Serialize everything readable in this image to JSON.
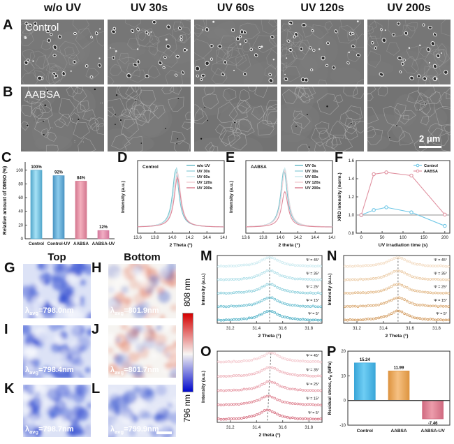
{
  "sem": {
    "headers": [
      "w/o UV",
      "UV 30s",
      "UV 60s",
      "UV 120s",
      "UV 200s"
    ],
    "row_a": {
      "letter": "A",
      "label": "Control"
    },
    "row_b": {
      "letter": "B",
      "label": "AABSA",
      "scale_bar": "2 μm"
    }
  },
  "maps": {
    "top_header": "Top",
    "bottom_header": "Bottom",
    "colorbar": {
      "top_label": "808 nm",
      "bottom_label": "796 nm",
      "top_color": "#d40000",
      "mid_color": "#f7f5f3",
      "bottom_color": "#0008cc"
    },
    "lambda_prefix": "λ",
    "lambda_sub": "avg",
    "panels": [
      {
        "letter": "G",
        "value_text": "=798.0nm",
        "kind": "blue-strong"
      },
      {
        "letter": "H",
        "value_text": "=801.9nm",
        "kind": "mixed"
      },
      {
        "letter": "I",
        "value_text": "=798.4nm",
        "kind": "blue-strong"
      },
      {
        "letter": "J",
        "value_text": "=801.7nm",
        "kind": "mixed"
      },
      {
        "letter": "K",
        "value_text": "=798.7nm",
        "kind": "blue-strong"
      },
      {
        "letter": "L",
        "value_text": "=799.9nm",
        "kind": "blue-mild"
      }
    ]
  },
  "chart_data": [
    {
      "id": "C",
      "letter": "C",
      "type": "bar",
      "ylabel": "Relative amount of DMSO (%)",
      "ylim": [
        0,
        112
      ],
      "yticks": [
        0,
        20,
        40,
        60,
        80,
        100
      ],
      "categories": [
        "Control",
        "Control-UV",
        "AABSA",
        "AABSA-UV"
      ],
      "values": [
        100,
        92,
        84,
        12
      ],
      "bar_labels": [
        "100%",
        "92%",
        "84%",
        "12%"
      ],
      "bar_fill": [
        "#a6e2f6",
        "#8ccbec",
        "#f4b0be",
        "#f2aec4"
      ],
      "bar_edge": [
        "#55a8cc",
        "#4c96c4",
        "#d47890",
        "#d4789c"
      ]
    },
    {
      "id": "D",
      "letter": "D",
      "type": "peaks",
      "inside_label": "Control",
      "xlabel": "2 Theta (°)",
      "ylabel": "Intensity (a.u.)",
      "xlim": [
        13.6,
        14.6
      ],
      "xticks": [
        "13.6",
        "13.8",
        "14.0",
        "14.2",
        "14.4",
        "14.6"
      ],
      "peak_center": 14.05,
      "series": [
        {
          "name": "w/o UV",
          "color": "#74c0cc",
          "peak": 1.0,
          "center": 14.04
        },
        {
          "name": "UV 30s",
          "color": "#a5d9e1",
          "peak": 1.03,
          "center": 14.05
        },
        {
          "name": "UV 60s",
          "color": "#cfecf0",
          "peak": 1.0,
          "center": 14.05
        },
        {
          "name": "UV 120s",
          "color": "#f3d3d9",
          "peak": 0.96,
          "center": 14.06
        },
        {
          "name": "UV 200s",
          "color": "#de8a9b",
          "peak": 0.87,
          "center": 14.06
        }
      ]
    },
    {
      "id": "E",
      "letter": "E",
      "type": "peaks",
      "inside_label": "AABSA",
      "xlabel": "2 theta (°)",
      "ylabel": "Intensity (a.u.)",
      "xlim": [
        13.6,
        14.6
      ],
      "xticks": [
        "13.6",
        "13.8",
        "14.0",
        "14.2",
        "14.4",
        "14.6"
      ],
      "peak_center": 14.05,
      "series": [
        {
          "name": "UV 0s",
          "color": "#74c0cc",
          "peak": 1.0,
          "center": 14.04
        },
        {
          "name": "UV 30s",
          "color": "#a5d9e1",
          "peak": 1.02,
          "center": 14.05
        },
        {
          "name": "UV 60s",
          "color": "#cfecf0",
          "peak": 1.03,
          "center": 14.05
        },
        {
          "name": "UV 120s",
          "color": "#f3d3d9",
          "peak": 0.99,
          "center": 14.05
        },
        {
          "name": "UV 200s",
          "color": "#de8a9b",
          "peak": 0.62,
          "center": 14.05
        }
      ]
    },
    {
      "id": "F",
      "letter": "F",
      "type": "line",
      "xlabel": "UV irradiation time (s)",
      "ylabel": "XRD intensity (norm.)",
      "xlim": [
        -12,
        212
      ],
      "xticks": [
        0,
        50,
        100,
        150,
        200
      ],
      "ylim": [
        0.8,
        1.6
      ],
      "yticks": [
        "0.8",
        "1.0",
        "1.2",
        "1.4",
        "1.6"
      ],
      "baseline": 1.0,
      "series": [
        {
          "name": "Control",
          "color": "#6cc6e6",
          "x": [
            0,
            30,
            60,
            120,
            200
          ],
          "y": [
            1.0,
            1.055,
            1.085,
            1.03,
            0.88
          ]
        },
        {
          "name": "AABSA",
          "color": "#e091a0",
          "x": [
            0,
            30,
            60,
            120,
            200
          ],
          "y": [
            1.0,
            1.45,
            1.47,
            1.435,
            1.005
          ]
        }
      ]
    },
    {
      "id": "M",
      "letter": "M",
      "type": "stacked",
      "xlabel": "2 Theta (°)",
      "ylabel": "Intensity (a.u.)",
      "xlim": [
        31.1,
        31.9
      ],
      "xticks": [
        "31.2",
        "31.4",
        "31.6",
        "31.8"
      ],
      "psi_labels": [
        "Ψ = 45°",
        "Ψ = 35°",
        "Ψ = 25°",
        "Ψ = 15°",
        "Ψ = 5°"
      ],
      "colors": [
        "#cdebf1",
        "#b2e0e9",
        "#93d2de",
        "#72c2d3",
        "#52b2c7"
      ],
      "centers": [
        31.5,
        31.5,
        31.5,
        31.5,
        31.5
      ],
      "dash_x": [
        31.5,
        31.5
      ]
    },
    {
      "id": "N",
      "letter": "N",
      "type": "stacked",
      "xlabel": "2 Theta (°)",
      "ylabel": "Intensity (a.u.)",
      "xlim": [
        31.1,
        31.9
      ],
      "xticks": [
        "31.2",
        "31.4",
        "31.6",
        "31.8"
      ],
      "psi_labels": [
        "Ψ = 45°",
        "Ψ = 35°",
        "Ψ = 25°",
        "Ψ = 15°",
        "Ψ = 5°"
      ],
      "colors": [
        "#f3dcc3",
        "#eccda9",
        "#e4bd8f",
        "#dcad78",
        "#d39c60"
      ],
      "centers": [
        31.51,
        31.51,
        31.51,
        31.51,
        31.51
      ],
      "dash_x": [
        31.51,
        31.51
      ]
    },
    {
      "id": "O",
      "letter": "O",
      "type": "stacked",
      "xlabel": "2 theta (°)",
      "ylabel": "Intensity (a.u.)",
      "xlim": [
        31.1,
        31.9
      ],
      "xticks": [
        "31.2",
        "31.4",
        "31.6",
        "31.8"
      ],
      "psi_labels": [
        "Ψ = 45°",
        "Ψ = 35°",
        "Ψ = 25°",
        "Ψ = 15°",
        "Ψ = 5°"
      ],
      "colors": [
        "#f5cdd2",
        "#efb7bf",
        "#e8a0ab",
        "#e08a97",
        "#d77283"
      ],
      "centers": [
        31.51,
        31.505,
        31.5,
        31.49,
        31.485
      ],
      "dash_x": [
        31.51,
        31.483
      ]
    },
    {
      "id": "P",
      "letter": "P",
      "type": "bar",
      "ylabel_parts": {
        "pre": "Residual stress, σ",
        "sub": "R",
        "post": " (MPa)"
      },
      "ylim": [
        -10,
        20
      ],
      "yticks": [
        -10,
        0,
        10,
        20
      ],
      "categories": [
        "Control",
        "AABSA",
        "AABSA-UV"
      ],
      "values": [
        15.24,
        11.99,
        -7.46
      ],
      "bar_labels": [
        "15.24",
        "11.99",
        "-7.46"
      ],
      "bar_fill": [
        "#6ecdf4",
        "#f6c183",
        "#ec9cab"
      ],
      "bar_edge": [
        "#3aa6d8",
        "#dd9440",
        "#d06a80"
      ]
    }
  ]
}
